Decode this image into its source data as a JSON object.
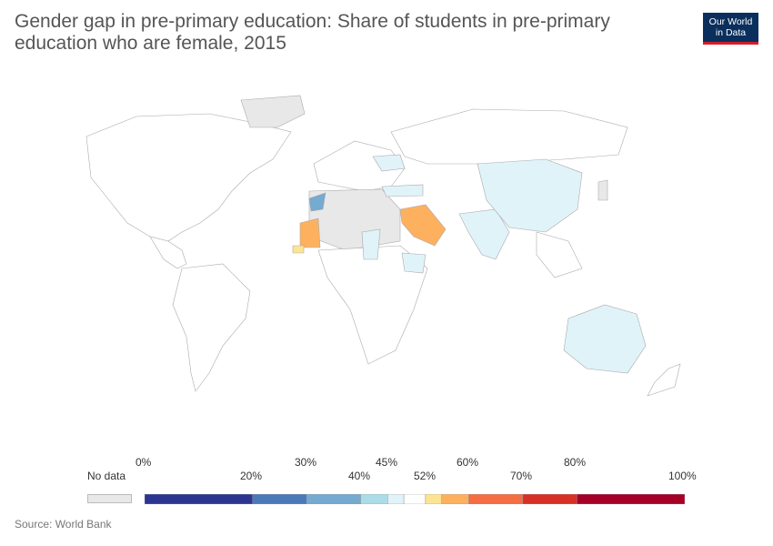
{
  "title": "Gender gap in pre-primary education: Share of students in pre-primary education who are female, 2015",
  "logo": {
    "line1": "Our World",
    "line2": "in Data"
  },
  "legend": {
    "no_data_label": "No data",
    "ticks_upper": [
      "0%",
      "30%",
      "45%",
      "60%",
      "80%"
    ],
    "ticks_lower": [
      "20%",
      "40%",
      "52%",
      "70%",
      "100%"
    ],
    "bins": [
      {
        "from": 0,
        "to": 20,
        "color": "#2d3590"
      },
      {
        "from": 20,
        "to": 30,
        "color": "#4a79b8"
      },
      {
        "from": 30,
        "to": 40,
        "color": "#75aad1"
      },
      {
        "from": 40,
        "to": 45,
        "color": "#abdce8"
      },
      {
        "from": 45,
        "to": 48,
        "color": "#e0f3f8"
      },
      {
        "from": 48,
        "to": 52,
        "color": "#ffffff"
      },
      {
        "from": 52,
        "to": 55,
        "color": "#fde494"
      },
      {
        "from": 55,
        "to": 60,
        "color": "#fdb15f"
      },
      {
        "from": 60,
        "to": 70,
        "color": "#f46d43"
      },
      {
        "from": 70,
        "to": 80,
        "color": "#d73027"
      },
      {
        "from": 80,
        "to": 100,
        "color": "#a50026"
      }
    ],
    "no_data_color": "#e8e8e8"
  },
  "source": "Source: World Bank",
  "highlighted_regions": [
    {
      "color": "#fdb15f",
      "value_bin": "55-60%"
    },
    {
      "color": "#e0f3f8",
      "value_bin": "45-48%"
    },
    {
      "color": "#abdce8",
      "value_bin": "40-45%"
    },
    {
      "color": "#75aad1",
      "value_bin": "30-40%"
    },
    {
      "color": "#fde494",
      "value_bin": "52-55%"
    }
  ]
}
